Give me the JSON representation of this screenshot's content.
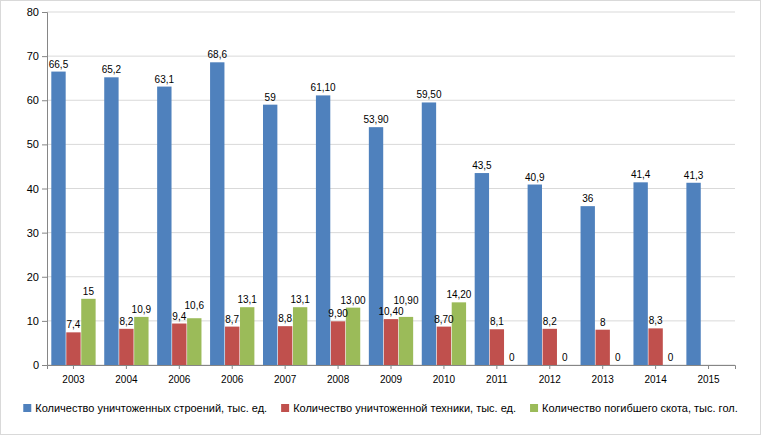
{
  "chart_data": {
    "type": "bar",
    "categories": [
      "2003",
      "2004",
      "2006",
      "2006",
      "2007",
      "2008",
      "2009",
      "2010",
      "2011",
      "2012",
      "2013",
      "2014",
      "2015"
    ],
    "series": [
      {
        "name": "Количество уничтоженных строений, тыс. ед.",
        "color": "#4f81bd",
        "values": [
          66.5,
          65.2,
          63.1,
          68.6,
          59,
          61.1,
          53.9,
          59.5,
          43.5,
          40.9,
          36,
          41.4,
          41.3
        ],
        "value_labels": [
          "66,5",
          "65,2",
          "63,1",
          "68,6",
          "59",
          "61,10",
          "53,90",
          "59,50",
          "43,5",
          "40,9",
          "36",
          "41,4",
          "41,3"
        ]
      },
      {
        "name": "Количество уничтоженной техники, тыс. ед.",
        "color": "#c0504d",
        "values": [
          7.4,
          8.2,
          9.4,
          8.7,
          8.8,
          9.9,
          10.4,
          8.7,
          8.1,
          8.2,
          8,
          8.3,
          null
        ],
        "value_labels": [
          "7,4",
          "8,2",
          "9,4",
          "8,7",
          "8,8",
          "9,90",
          "10,40",
          "8,70",
          "8,1",
          "8,2",
          "8",
          "8,3",
          null
        ]
      },
      {
        "name": "Количество погибшего скота, тыс. гол.",
        "color": "#9bbb59",
        "values": [
          15,
          10.9,
          10.6,
          13.1,
          13.1,
          13,
          10.9,
          14.2,
          0,
          0,
          0,
          0,
          null
        ],
        "value_labels": [
          "15",
          "10,9",
          "10,6",
          "13,1",
          "13,1",
          "13,00",
          "10,90",
          "14,20",
          "0",
          "0",
          "0",
          "0",
          null
        ]
      }
    ],
    "ylim": [
      0,
      80
    ],
    "yticks": [
      0,
      10,
      20,
      30,
      40,
      50,
      60,
      70,
      80
    ],
    "grid": true,
    "legend": "bottom",
    "data_labels": true
  }
}
